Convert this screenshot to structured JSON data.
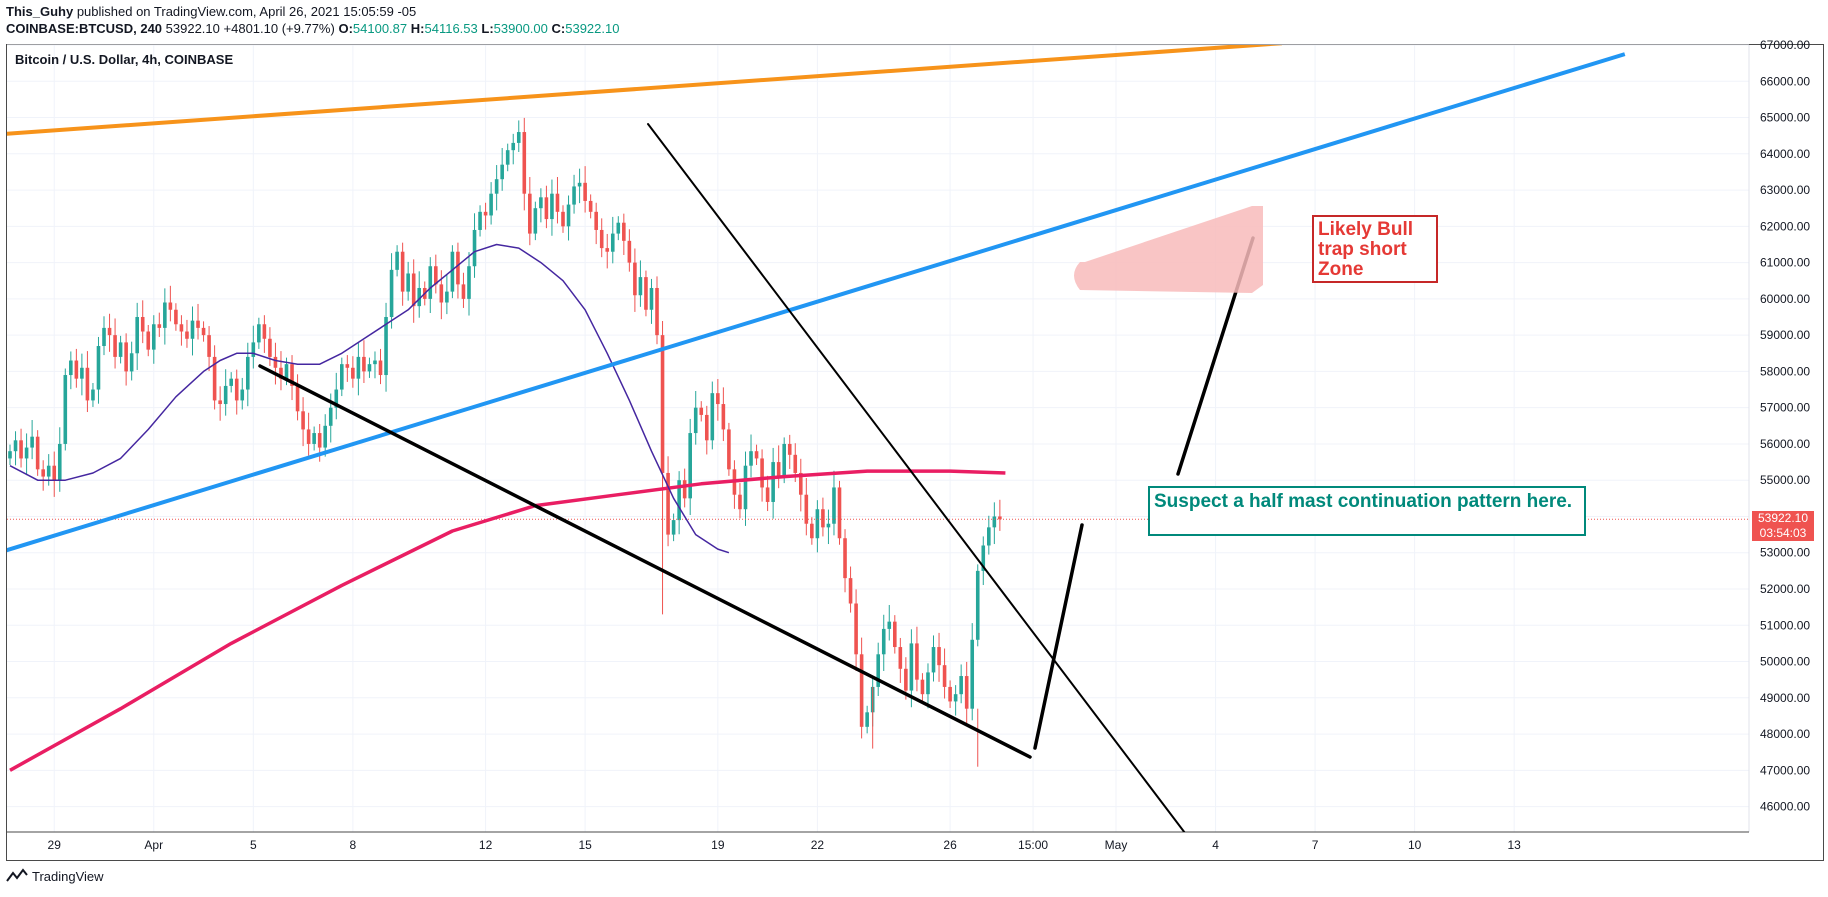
{
  "header": {
    "author": "This_Guhy",
    "published": "published on TradingView.com, April 26, 2021 15:05:59 -05",
    "symbol_line": "COINBASE:BTCUSD, 240",
    "last": "53922.10",
    "change": "+4801.10 (+9.77%)",
    "open_label": "O:",
    "open": "54100.87",
    "high_label": "H:",
    "high": "54116.53",
    "low_label": "L:",
    "low": "53900.00",
    "close_label": "C:",
    "close": "53922.10"
  },
  "chart_title": "Bitcoin / U.S. Dollar, 4h, COINBASE",
  "footer": {
    "brand": "TradingView"
  },
  "price_tag": {
    "price": "53922.10",
    "countdown": "03:54:03",
    "color": "#ef5350"
  },
  "annotations": {
    "bull_trap": "Likely Bull trap short Zone",
    "half_mast": "Suspect a half mast continuation pattern here."
  },
  "colors": {
    "up": "#26a69a",
    "down": "#ef5350",
    "orange_line": "#f7931a",
    "blue_line": "#2196f3",
    "ma_long": "#e91e63",
    "ma_short": "#4527a0",
    "trendline": "#000000",
    "zone": "#f8bbbb"
  },
  "chart_data": {
    "type": "candlestick",
    "timeframe": "4h",
    "ylim": [
      45300,
      67000
    ],
    "y_ticks": [
      46000,
      47000,
      48000,
      49000,
      50000,
      51000,
      52000,
      53000,
      54000,
      55000,
      56000,
      57000,
      58000,
      59000,
      60000,
      61000,
      62000,
      63000,
      64000,
      65000,
      66000,
      67000
    ],
    "y_tick_labels": [
      "46000.00",
      "47000.00",
      "48000.00",
      "49000.00",
      "50000.00",
      "51000.00",
      "52000.00",
      "53000.00",
      "54000.00",
      "55000.00",
      "56000.00",
      "57000.00",
      "58000.00",
      "59000.00",
      "60000.00",
      "61000.00",
      "62000.00",
      "63000.00",
      "64000.00",
      "65000.00",
      "66000.00",
      "67000.00"
    ],
    "x_ticks": [
      {
        "label": "29",
        "bar": 8
      },
      {
        "label": "Apr",
        "bar": 26
      },
      {
        "label": "5",
        "bar": 44
      },
      {
        "label": "8",
        "bar": 62
      },
      {
        "label": "12",
        "bar": 86
      },
      {
        "label": "15",
        "bar": 104
      },
      {
        "label": "19",
        "bar": 128
      },
      {
        "label": "22",
        "bar": 146
      },
      {
        "label": "26",
        "bar": 170
      },
      {
        "label": "15:00",
        "bar": 185
      },
      {
        "label": "May",
        "bar": 200
      },
      {
        "label": "4",
        "bar": 218
      },
      {
        "label": "7",
        "bar": 236
      },
      {
        "label": "10",
        "bar": 254
      },
      {
        "label": "13",
        "bar": 272
      }
    ],
    "last_price": 53922.1,
    "closes": [
      55800,
      56100,
      55600,
      55900,
      56200,
      55300,
      55100,
      55400,
      55000,
      56000,
      57900,
      58300,
      57800,
      58100,
      57200,
      57500,
      58700,
      59200,
      59000,
      58400,
      58800,
      58000,
      58500,
      59500,
      59100,
      58600,
      59300,
      59200,
      59900,
      59700,
      59300,
      59100,
      58900,
      59400,
      59200,
      59000,
      58400,
      57200,
      57100,
      57600,
      57800,
      57200,
      57500,
      58400,
      58800,
      59300,
      58900,
      58400,
      58100,
      57800,
      58200,
      57600,
      56900,
      56400,
      56000,
      56300,
      55900,
      56500,
      57000,
      57500,
      58200,
      58100,
      57800,
      58400,
      58000,
      58200,
      58300,
      57900,
      59500,
      60800,
      61300,
      60200,
      60700,
      59800,
      60300,
      60000,
      60900,
      60400,
      59900,
      60200,
      61300,
      60400,
      60000,
      60900,
      61900,
      62400,
      62300,
      62900,
      63300,
      63700,
      64100,
      64300,
      64600,
      62900,
      61800,
      62500,
      62800,
      62200,
      62900,
      62400,
      62000,
      62600,
      63100,
      63200,
      62700,
      62400,
      61900,
      61400,
      61300,
      61800,
      62100,
      61600,
      61000,
      60100,
      60600,
      59700,
      60300,
      59000,
      55200,
      53500,
      53900,
      55000,
      54500,
      56300,
      57000,
      56800,
      56100,
      57400,
      57100,
      56400,
      55300,
      54600,
      54200,
      55400,
      55800,
      55600,
      54800,
      54400,
      55500,
      55100,
      56000,
      55700,
      55200,
      54600,
      53800,
      53400,
      54200,
      53700,
      53800,
      54800,
      53400,
      52300,
      51600,
      50200,
      48200,
      48600,
      49300,
      50200,
      50900,
      51100,
      50400,
      49800,
      49200,
      50500,
      49500,
      49100,
      49700,
      50400,
      49900,
      49300,
      48900,
      49100,
      49600,
      48700,
      50600,
      52500,
      53200,
      53700,
      54000,
      53922
    ],
    "series": [
      {
        "name": "",
        "type": "ma",
        "color": "#e91e63",
        "points": [
          [
            0,
            47000
          ],
          [
            20,
            48700
          ],
          [
            40,
            50500
          ],
          [
            60,
            52100
          ],
          [
            80,
            53600
          ],
          [
            95,
            54300
          ],
          [
            110,
            54600
          ],
          [
            125,
            54900
          ],
          [
            140,
            55100
          ],
          [
            155,
            55250
          ],
          [
            170,
            55250
          ],
          [
            180,
            55200
          ]
        ]
      },
      {
        "name": "",
        "type": "ma",
        "color": "#4527a0",
        "points": [
          [
            0,
            55400
          ],
          [
            5,
            55000
          ],
          [
            10,
            55000
          ],
          [
            15,
            55200
          ],
          [
            20,
            55600
          ],
          [
            25,
            56400
          ],
          [
            30,
            57300
          ],
          [
            35,
            58000
          ],
          [
            38,
            58300
          ],
          [
            41,
            58500
          ],
          [
            44,
            58500
          ],
          [
            48,
            58300
          ],
          [
            52,
            58200
          ],
          [
            56,
            58200
          ],
          [
            60,
            58500
          ],
          [
            64,
            58900
          ],
          [
            68,
            59300
          ],
          [
            72,
            59700
          ],
          [
            76,
            60300
          ],
          [
            80,
            60800
          ],
          [
            84,
            61300
          ],
          [
            88,
            61500
          ],
          [
            92,
            61400
          ],
          [
            96,
            61000
          ],
          [
            100,
            60500
          ],
          [
            104,
            59700
          ],
          [
            108,
            58500
          ],
          [
            112,
            57200
          ],
          [
            116,
            55800
          ],
          [
            120,
            54500
          ],
          [
            124,
            53500
          ],
          [
            128,
            53100
          ],
          [
            130,
            53000
          ]
        ]
      },
      {
        "name": "",
        "type": "trendline",
        "color": "#f7931a",
        "points": [
          [
            -1,
            64550
          ],
          [
            230,
            67050
          ]
        ]
      },
      {
        "name": "",
        "type": "trendline",
        "color": "#2196f3",
        "points": [
          [
            -1,
            53050
          ],
          [
            292,
            66750
          ]
        ]
      }
    ]
  }
}
